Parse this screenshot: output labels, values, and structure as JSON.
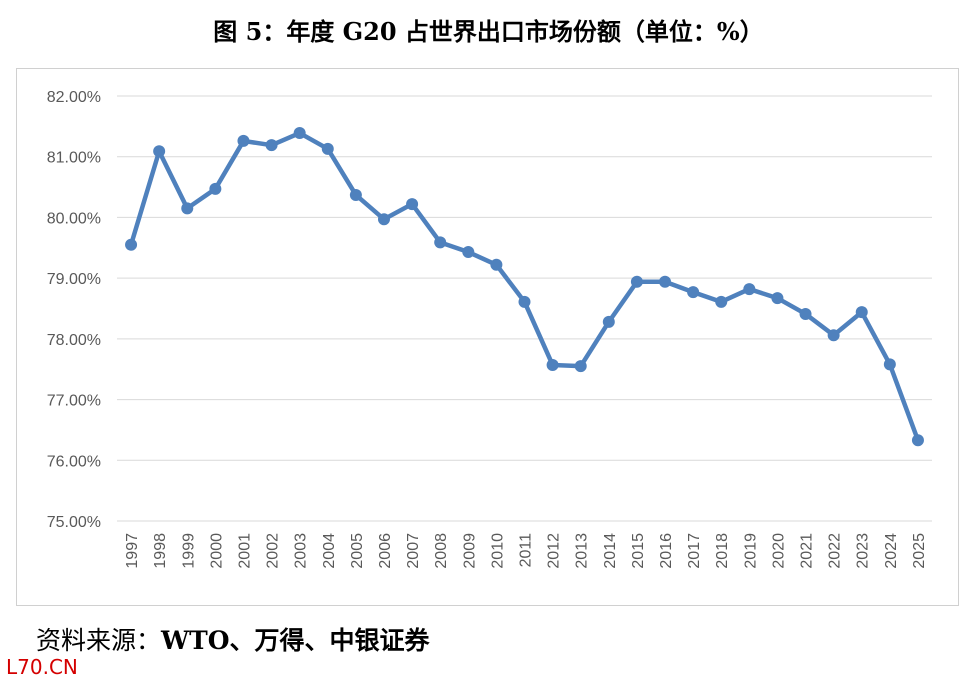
{
  "chart_data": {
    "type": "line",
    "title": "图 5：年度 G20 占世界出口市场份额（单位：%）",
    "xlabel": "",
    "ylabel": "",
    "ylim": [
      75,
      82
    ],
    "yticks": [
      "75.00%",
      "76.00%",
      "77.00%",
      "78.00%",
      "79.00%",
      "80.00%",
      "81.00%",
      "82.00%"
    ],
    "grid": true,
    "categories": [
      "1997",
      "1998",
      "1999",
      "2000",
      "2001",
      "2002",
      "2003",
      "2004",
      "2005",
      "2006",
      "2007",
      "2008",
      "2009",
      "2010",
      "2011",
      "2012",
      "2013",
      "2014",
      "2015",
      "2016",
      "2017",
      "2018",
      "2019",
      "2020",
      "2021",
      "2022",
      "2023",
      "2024",
      "2025"
    ],
    "series": [
      {
        "name": "G20 share",
        "color": "#4f81bd",
        "values": [
          79.55,
          81.09,
          80.15,
          80.47,
          81.26,
          81.19,
          81.39,
          81.13,
          80.37,
          79.97,
          80.22,
          79.59,
          79.43,
          79.22,
          78.61,
          77.57,
          77.55,
          78.28,
          78.94,
          78.94,
          78.77,
          78.61,
          78.82,
          78.67,
          78.41,
          78.06,
          78.44,
          77.58,
          76.33
        ]
      }
    ]
  },
  "source": {
    "label": "资料来源：",
    "value": "WTO、万得、中银证券"
  },
  "watermark": "L70.CN"
}
